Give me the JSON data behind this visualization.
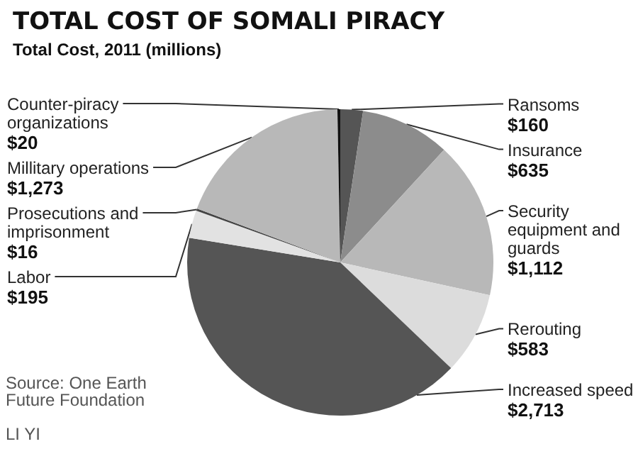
{
  "chart_data": {
    "type": "pie",
    "title": "TOTAL COST OF SOMALI PIRACY",
    "subtitle": "Total Cost, 2011 (millions)",
    "categories": [
      "Ransoms",
      "Insurance",
      "Security equipment and guards",
      "Rerouting",
      "Increased speed",
      "Labor",
      "Prosecutions and imprisonment",
      "Millitary operations",
      "Counter-piracy organizations"
    ],
    "values": [
      160,
      635,
      1112,
      583,
      2713,
      195,
      16,
      1273,
      20
    ],
    "value_labels": [
      "$160",
      "$635",
      "$1,112",
      "$583",
      "$2,713",
      "$195",
      "$16",
      "$1,273",
      "$20"
    ],
    "colors": [
      "#555555",
      "#8c8c8c",
      "#b8b8b8",
      "#dcdcdc",
      "#555555",
      "#e2e2e2",
      "#444444",
      "#b8b8b8",
      "#111111"
    ],
    "legend": false,
    "annotations": [
      "Source: One Earth Future Foundation",
      "LI YI"
    ]
  }
}
